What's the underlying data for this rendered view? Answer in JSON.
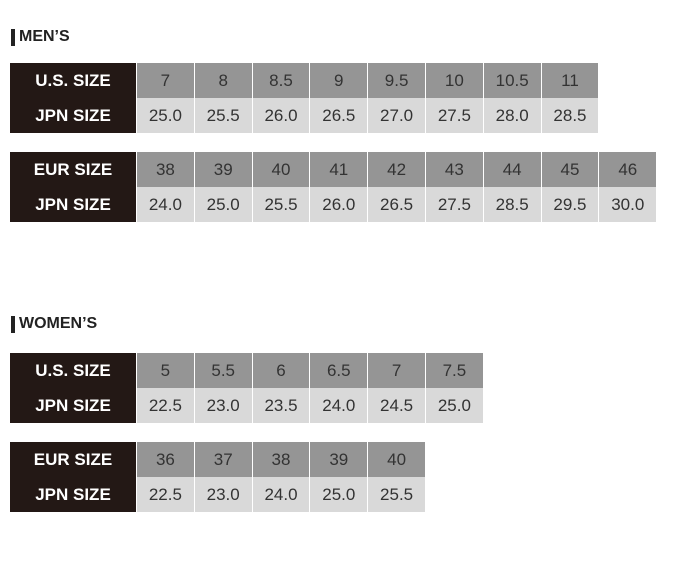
{
  "sections": [
    {
      "title": "MEN’S",
      "tables": [
        {
          "rows": [
            {
              "label": "U.S. SIZE",
              "values": [
                "7",
                "8",
                "8.5",
                "9",
                "9.5",
                "10",
                "10.5",
                "11"
              ]
            },
            {
              "label": "JPN SIZE",
              "values": [
                "25.0",
                "25.5",
                "26.0",
                "26.5",
                "27.0",
                "27.5",
                "28.0",
                "28.5"
              ]
            }
          ]
        },
        {
          "rows": [
            {
              "label": "EUR SIZE",
              "values": [
                "38",
                "39",
                "40",
                "41",
                "42",
                "43",
                "44",
                "45",
                "46"
              ]
            },
            {
              "label": "JPN SIZE",
              "values": [
                "24.0",
                "25.0",
                "25.5",
                "26.0",
                "26.5",
                "27.5",
                "28.5",
                "29.5",
                "30.0"
              ]
            }
          ]
        }
      ]
    },
    {
      "title": "WOMEN’S",
      "tables": [
        {
          "rows": [
            {
              "label": "U.S. SIZE",
              "values": [
                "5",
                "5.5",
                "6",
                "6.5",
                "7",
                "7.5"
              ]
            },
            {
              "label": "JPN SIZE",
              "values": [
                "22.5",
                "23.0",
                "23.5",
                "24.0",
                "24.5",
                "25.0"
              ]
            }
          ]
        },
        {
          "rows": [
            {
              "label": "EUR SIZE",
              "values": [
                "36",
                "37",
                "38",
                "39",
                "40"
              ]
            },
            {
              "label": "JPN SIZE",
              "values": [
                "22.5",
                "23.0",
                "24.0",
                "25.0",
                "25.5"
              ]
            }
          ]
        }
      ]
    }
  ]
}
